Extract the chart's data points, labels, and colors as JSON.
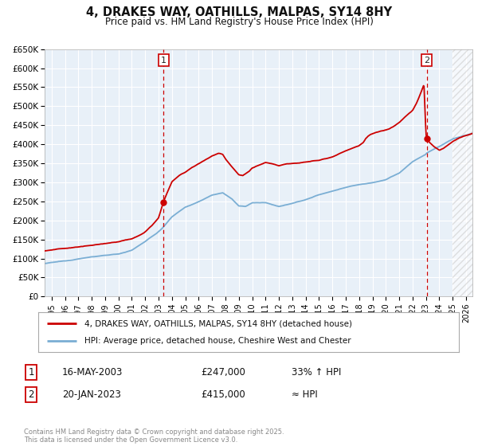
{
  "title": "4, DRAKES WAY, OATHILLS, MALPAS, SY14 8HY",
  "subtitle": "Price paid vs. HM Land Registry's House Price Index (HPI)",
  "legend_entry1": "4, DRAKES WAY, OATHILLS, MALPAS, SY14 8HY (detached house)",
  "legend_entry2": "HPI: Average price, detached house, Cheshire West and Chester",
  "color_price": "#cc0000",
  "color_hpi": "#7aaed4",
  "color_hpi_fill": "#ddeeff",
  "vline_color": "#cc0000",
  "marker_color": "#cc0000",
  "sale1_date": 2003.37,
  "sale1_price": 247000,
  "sale2_date": 2023.05,
  "sale2_price": 415000,
  "footer": "Contains HM Land Registry data © Crown copyright and database right 2025.\nThis data is licensed under the Open Government Licence v3.0.",
  "ylim": [
    0,
    650000
  ],
  "xlim_start": 1994.5,
  "xlim_end": 2026.5,
  "hatch_start": 2025.0,
  "yticks": [
    0,
    50000,
    100000,
    150000,
    200000,
    250000,
    300000,
    350000,
    400000,
    450000,
    500000,
    550000,
    600000,
    650000
  ],
  "ytick_labels": [
    "£0",
    "£50K",
    "£100K",
    "£150K",
    "£200K",
    "£250K",
    "£300K",
    "£350K",
    "£400K",
    "£450K",
    "£500K",
    "£550K",
    "£600K",
    "£650K"
  ],
  "xticks": [
    1995,
    1996,
    1997,
    1998,
    1999,
    2000,
    2001,
    2002,
    2003,
    2004,
    2005,
    2006,
    2007,
    2008,
    2009,
    2010,
    2011,
    2012,
    2013,
    2014,
    2015,
    2016,
    2017,
    2018,
    2019,
    2020,
    2021,
    2022,
    2023,
    2024,
    2025,
    2026
  ],
  "background_color": "#e8f0f8",
  "grid_color": "#ffffff",
  "box_color": "#cc0000"
}
